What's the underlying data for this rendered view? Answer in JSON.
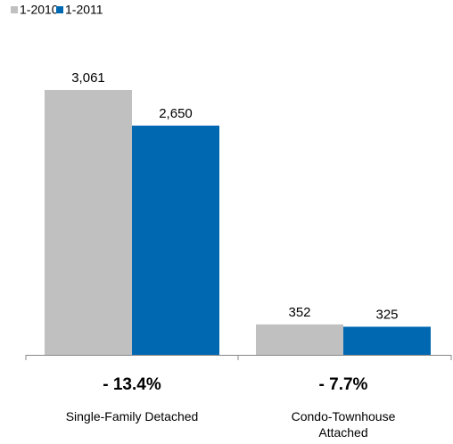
{
  "chart_data": {
    "type": "bar",
    "categories": [
      "Single-Family Detached",
      "Condo-Townhouse Attached"
    ],
    "category_lines": [
      [
        "Single-Family Detached"
      ],
      [
        "Condo-Townhouse",
        "Attached"
      ]
    ],
    "series": [
      {
        "name": "1-2010",
        "values": [
          3061,
          352
        ],
        "labels": [
          "3,061",
          "352"
        ],
        "color": "#c0c0c0"
      },
      {
        "name": "1-2011",
        "values": [
          2650,
          325
        ],
        "labels": [
          "2,650",
          "325"
        ],
        "color": "#0068b1"
      }
    ],
    "change_labels": [
      "- 13.4%",
      "- 7.7%"
    ],
    "ylim": [
      0,
      3061
    ],
    "grid": false,
    "legend": "top-left",
    "title": "",
    "xlabel": "",
    "ylabel": ""
  }
}
